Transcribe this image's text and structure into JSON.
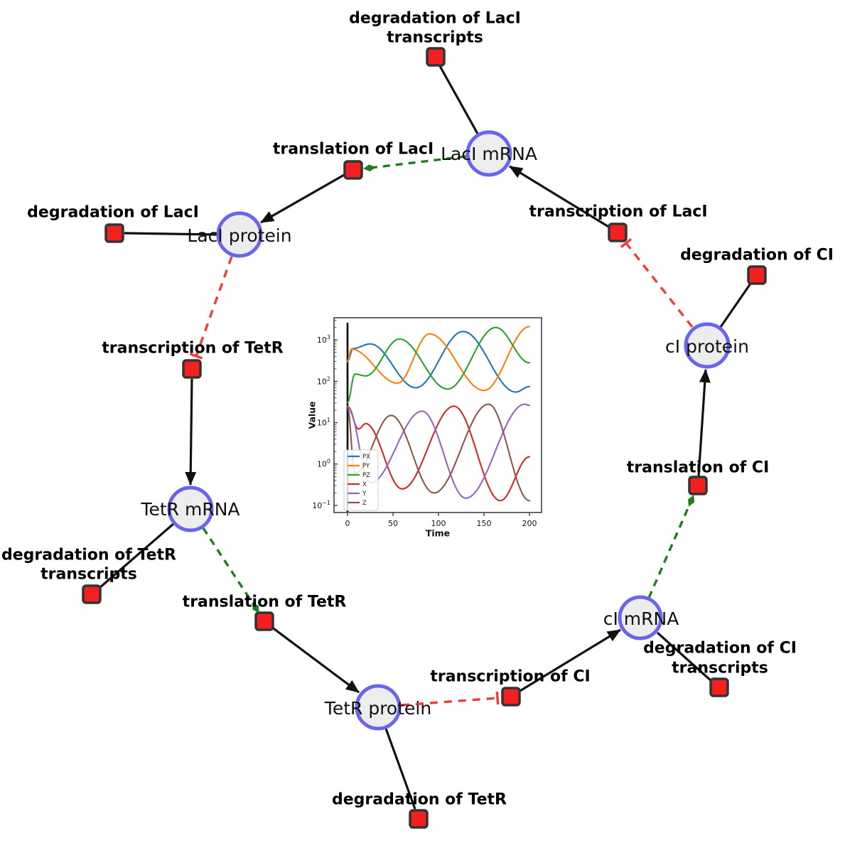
{
  "diagram": {
    "species": {
      "laci_mrna": {
        "label": "LacI mRNA"
      },
      "laci_protein": {
        "label": "LacI protein"
      },
      "ci_protein": {
        "label": "cI protein"
      },
      "tetr_mrna": {
        "label": "TetR mRNA"
      },
      "ci_mrna": {
        "label": "cI mRNA"
      },
      "tetr_protein": {
        "label": "TetR protein"
      }
    },
    "reactions": {
      "deg_laci_tx": {
        "line1": "degradation of LacI",
        "line2": "transcripts"
      },
      "transl_laci": {
        "label": "translation of LacI"
      },
      "deg_laci": {
        "label": "degradation of LacI"
      },
      "transc_laci": {
        "label": "transcription of LacI"
      },
      "deg_ci": {
        "label": "degradation of CI"
      },
      "transc_tetr": {
        "label": "transcription of TetR"
      },
      "transl_ci": {
        "label": "translation of CI"
      },
      "deg_tetr_tx": {
        "line1": "degradation of TetR",
        "line2": "transcripts"
      },
      "transl_tetr": {
        "label": "translation of TetR"
      },
      "transc_ci": {
        "label": "transcription of CI"
      },
      "deg_ci_tx": {
        "line1": "degradation of CI",
        "line2": "transcripts"
      },
      "deg_tetr": {
        "label": "degradation of TetR"
      }
    },
    "colors": {
      "species_fill": "#ededed",
      "species_border": "#6a64ef",
      "reaction_fill": "#f32020",
      "reaction_border": "#333333",
      "edge_black": "#111111",
      "edge_activation_green": "#1f7d1f",
      "edge_inhibition_red": "#f23b3b"
    }
  },
  "chart_data": {
    "type": "line",
    "xlabel": "Time",
    "ylabel": "Value",
    "yscale": "log",
    "xlim": [
      -15,
      213
    ],
    "ylim": [
      0.056,
      3500
    ],
    "x_ticks": [
      0,
      50,
      100,
      150,
      200
    ],
    "y_tick_exponents": [
      -1,
      0,
      1,
      2,
      3
    ],
    "grid": false,
    "legend_position": "lower left",
    "initial_transient_line": {
      "t": 0,
      "color": "#000000"
    },
    "legend": [
      {
        "name": "PX",
        "color": "#1f77b4"
      },
      {
        "name": "PY",
        "color": "#ff7f0e"
      },
      {
        "name": "PZ",
        "color": "#2ca02c"
      },
      {
        "name": "X",
        "color": "#d62728"
      },
      {
        "name": "Y",
        "color": "#9467bd"
      },
      {
        "name": "Z",
        "color": "#8c564b"
      }
    ],
    "series": [
      {
        "name": "PX",
        "color": "#1f77b4",
        "keypoints": [
          [
            0,
            300
          ],
          [
            6,
            620
          ],
          [
            25,
            800
          ],
          [
            75,
            70
          ],
          [
            127,
            1600
          ],
          [
            185,
            55
          ],
          [
            200,
            75
          ]
        ]
      },
      {
        "name": "PY",
        "color": "#ff7f0e",
        "keypoints": [
          [
            0,
            300
          ],
          [
            4,
            600
          ],
          [
            55,
            90
          ],
          [
            90,
            1400
          ],
          [
            150,
            60
          ],
          [
            200,
            2100
          ]
        ]
      },
      {
        "name": "PZ",
        "color": "#2ca02c",
        "keypoints": [
          [
            0,
            30
          ],
          [
            8,
            150
          ],
          [
            20,
            135
          ],
          [
            57,
            1050
          ],
          [
            110,
            65
          ],
          [
            163,
            2000
          ],
          [
            200,
            280
          ]
        ]
      },
      {
        "name": "X",
        "color": "#d62728",
        "keypoints": [
          [
            0,
            25
          ],
          [
            12,
            7
          ],
          [
            20,
            9.5
          ],
          [
            60,
            0.25
          ],
          [
            117,
            25
          ],
          [
            168,
            0.13
          ],
          [
            200,
            1.5
          ]
        ]
      },
      {
        "name": "Y",
        "color": "#9467bd",
        "keypoints": [
          [
            0,
            25
          ],
          [
            25,
            0.35
          ],
          [
            82,
            19
          ],
          [
            130,
            0.15
          ],
          [
            195,
            28
          ],
          [
            200,
            26
          ]
        ]
      },
      {
        "name": "Z",
        "color": "#8c564b",
        "keypoints": [
          [
            0,
            25
          ],
          [
            8,
            0.6
          ],
          [
            48,
            15
          ],
          [
            95,
            0.2
          ],
          [
            155,
            28
          ],
          [
            200,
            0.13
          ]
        ]
      }
    ]
  }
}
